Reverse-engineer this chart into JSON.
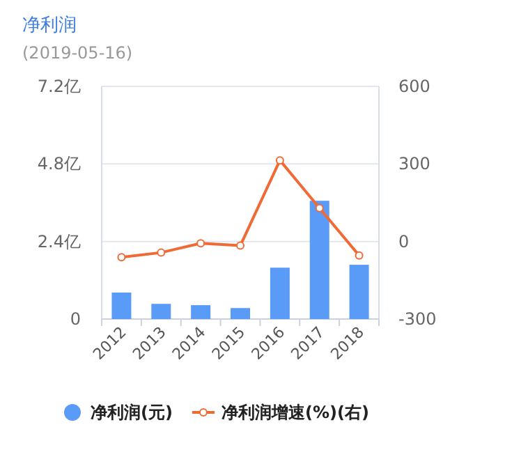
{
  "chart_data": {
    "type": "bar",
    "title": "净利润",
    "subtitle": "(2019-05-16)",
    "categories": [
      "2012",
      "2013",
      "2014",
      "2015",
      "2016",
      "2017",
      "2018"
    ],
    "series": [
      {
        "name": "净利润(元)",
        "color": "#5b9bf8",
        "values": [
          0.82,
          0.47,
          0.43,
          0.34,
          1.59,
          3.66,
          1.68
        ]
      },
      {
        "name": "净利润增速(%)(右)",
        "type": "line",
        "axis": "y2",
        "color": "#f06a35",
        "values": [
          -61,
          -43,
          -7,
          -16,
          314,
          129,
          -54
        ]
      }
    ],
    "ylim": [
      0,
      7.2
    ],
    "yticks": [
      0,
      {
        "value": 2.4,
        "label": "2.4亿"
      },
      {
        "value": 4.8,
        "label": "4.8亿"
      },
      {
        "value": 7.2,
        "label": "7.2亿"
      }
    ],
    "y2lim": [
      -300,
      600
    ],
    "y2ticks": [
      -300,
      0,
      300,
      600
    ],
    "grid": "y",
    "legend": "bottom",
    "marker": "circle",
    "line_style": "solid"
  }
}
